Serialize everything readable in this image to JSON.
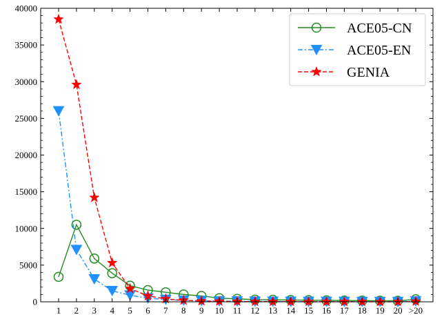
{
  "chart_data": {
    "type": "line",
    "categories": [
      "1",
      "2",
      "3",
      "4",
      "5",
      "6",
      "7",
      "8",
      "9",
      "10",
      "11",
      "12",
      "13",
      "14",
      "15",
      "16",
      "17",
      "18",
      "19",
      "20",
      ">20"
    ],
    "ylim": [
      0,
      40000
    ],
    "yticks": [
      0,
      5000,
      10000,
      15000,
      20000,
      25000,
      30000,
      35000,
      40000
    ],
    "grid": false,
    "legend_position": "top-right",
    "series": [
      {
        "name": "ACE05-CN",
        "color": "#228B22",
        "marker": "circle-open",
        "line_style": "solid",
        "values": [
          3400,
          10500,
          5900,
          3900,
          2200,
          1600,
          1300,
          1000,
          800,
          500,
          400,
          300,
          280,
          250,
          220,
          200,
          180,
          160,
          150,
          140,
          350
        ]
      },
      {
        "name": "ACE05-EN",
        "color": "#1E90FF",
        "marker": "triangle-down",
        "line_style": "dashdot",
        "values": [
          26000,
          7100,
          3100,
          1500,
          900,
          500,
          300,
          200,
          150,
          100,
          80,
          60,
          50,
          40,
          35,
          30,
          25,
          20,
          18,
          15,
          100
        ]
      },
      {
        "name": "GENIA",
        "color": "#FF0000",
        "marker": "star",
        "line_style": "dashed",
        "values": [
          38500,
          29600,
          14200,
          5300,
          1800,
          800,
          400,
          200,
          100,
          60,
          40,
          30,
          20,
          15,
          12,
          10,
          8,
          6,
          5,
          4,
          50
        ]
      }
    ]
  }
}
